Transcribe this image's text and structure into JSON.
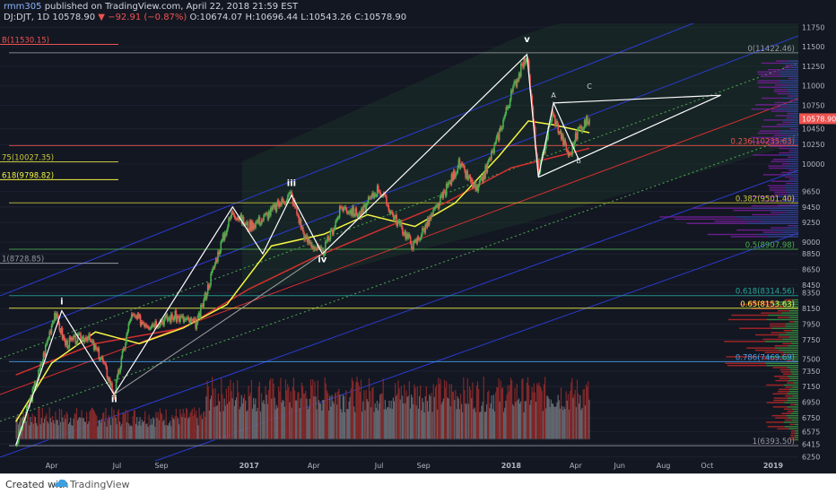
{
  "header": {
    "author": "rmm305",
    "published": "published on TradingView.com, April 22, 2018 21:59 EST"
  },
  "quote": {
    "symbol": "DJ:DJT, 1D",
    "last": "10578.90",
    "change": "−92.91 (−0.87%)",
    "ohlc": "O:10674.07 H:10696.44 L:10543.26 C:10578.90"
  },
  "footer": {
    "created_with": "Created with",
    "brand": "TradingView"
  },
  "colors": {
    "background": "#131722",
    "up": "#4caf50",
    "down": "#ef5350",
    "ma_yellow": "#f5f542",
    "ma_red": "#d32f2f",
    "channel_blue": "#2a3bd1",
    "fib": "#e6e600"
  },
  "chart_data": {
    "type": "line",
    "title": "",
    "y_axis": {
      "ticks": [
        11750,
        11500,
        11250,
        11000,
        10750,
        10450,
        10250,
        10000,
        9650,
        9450,
        9250,
        9000,
        8850,
        8650,
        8450,
        8350,
        8150,
        7950,
        7750,
        7500,
        7350,
        7150,
        6950,
        6750,
        6575,
        6415,
        6250
      ],
      "ylim": [
        6200,
        11800
      ],
      "last_price_label": "10578.90"
    },
    "x_axis": {
      "tick_labels": [
        "Apr",
        "Jul",
        "Sep",
        "2017",
        "Apr",
        "Jul",
        "Sep",
        "2018",
        "Apr",
        "Jun",
        "Aug",
        "Oct",
        "2019"
      ]
    },
    "price_path": {
      "dates": [
        "2016-02-11",
        "2016-03-15",
        "2016-04-05",
        "2016-04-20",
        "2016-05-20",
        "2016-06-10",
        "2016-06-27",
        "2016-07-20",
        "2016-08-15",
        "2016-09-20",
        "2016-10-20",
        "2016-11-20",
        "2016-12-09",
        "2016-12-30",
        "2017-01-20",
        "2017-02-28",
        "2017-03-20",
        "2017-04-13",
        "2017-05-10",
        "2017-06-05",
        "2017-06-30",
        "2017-07-20",
        "2017-08-18",
        "2017-09-20",
        "2017-10-20",
        "2017-11-15",
        "2017-12-10",
        "2018-01-05",
        "2018-01-23",
        "2018-02-08",
        "2018-02-27",
        "2018-03-23",
        "2018-04-05",
        "2018-04-20"
      ],
      "values": [
        6400,
        7350,
        8100,
        7700,
        7800,
        7500,
        7050,
        8050,
        7950,
        8050,
        7950,
        8900,
        9400,
        9200,
        9300,
        9620,
        9050,
        8850,
        9450,
        9350,
        9700,
        9350,
        8950,
        9450,
        10000,
        9650,
        10250,
        11000,
        11400,
        9850,
        10650,
        10100,
        10450,
        10578.9
      ]
    },
    "ma_fast": {
      "dates": [
        "2016-02-11",
        "2016-04-01",
        "2016-06-01",
        "2016-08-01",
        "2016-10-01",
        "2016-12-01",
        "2017-02-01",
        "2017-04-15",
        "2017-06-15",
        "2017-08-20",
        "2017-10-15",
        "2017-12-15",
        "2018-01-25",
        "2018-03-01",
        "2018-04-20"
      ],
      "values": [
        6700,
        7450,
        7850,
        7700,
        7900,
        8200,
        8950,
        9100,
        9350,
        9200,
        9500,
        10100,
        10550,
        10500,
        10400
      ]
    },
    "ma_slow": {
      "dates": [
        "2016-02-11",
        "2016-06-01",
        "2016-10-01",
        "2017-01-01",
        "2017-04-01",
        "2017-07-01",
        "2017-10-01",
        "2018-01-01",
        "2018-04-20"
      ],
      "values": [
        7300,
        7700,
        7900,
        8400,
        8800,
        9150,
        9500,
        9950,
        10200
      ]
    },
    "wave_labels": [
      {
        "label": "i",
        "date": "2016-04-15",
        "value": 8200
      },
      {
        "label": "ii",
        "date": "2016-06-27",
        "value": 6950
      },
      {
        "label": "iii",
        "date": "2017-03-01",
        "value": 9720
      },
      {
        "label": "iv",
        "date": "2017-04-13",
        "value": 8740
      },
      {
        "label": "v",
        "date": "2018-01-23",
        "value": 11560
      },
      {
        "label": "A",
        "date": "2018-03-01",
        "value": 10850
      },
      {
        "label": "B",
        "date": "2018-04-05",
        "value": 10010
      },
      {
        "label": "C",
        "date": "2018-04-20",
        "value": 10960
      }
    ],
    "fib_levels": [
      {
        "label": "0(11422.46)",
        "value": 11422.46,
        "color": "#9598a1"
      },
      {
        "label": "0.236(10235.63)",
        "value": 10235.63,
        "color": "#ef5350"
      },
      {
        "label": "0.382(9501.40)",
        "value": 9501.4,
        "color": "#c9c93a"
      },
      {
        "label": "0.5(8907.98)",
        "value": 8907.98,
        "color": "#4caf50"
      },
      {
        "label": "0.618(8314.56)",
        "value": 8314.56,
        "color": "#26a69a"
      },
      {
        "label": "0.65(8153.63)",
        "value": 8153.63,
        "color": "#f5f542"
      },
      {
        "label": "0.786(7469.69)",
        "value": 7469.69,
        "color": "#42a5f5"
      },
      {
        "label": "1(6393.50)",
        "value": 6393.5,
        "color": "#9598a1"
      }
    ],
    "left_fib_levels": [
      {
        "label": "B(11530.15)",
        "value": 11530.15,
        "color": "#ef5350"
      },
      {
        "label": "75(10027.35)",
        "value": 10027.35,
        "color": "#c9c93a"
      },
      {
        "label": "618(9798.82)",
        "value": 9798.82,
        "color": "#f5f542"
      },
      {
        "label": "1(8728.85)",
        "value": 8728.85,
        "color": "#9598a1"
      }
    ]
  }
}
